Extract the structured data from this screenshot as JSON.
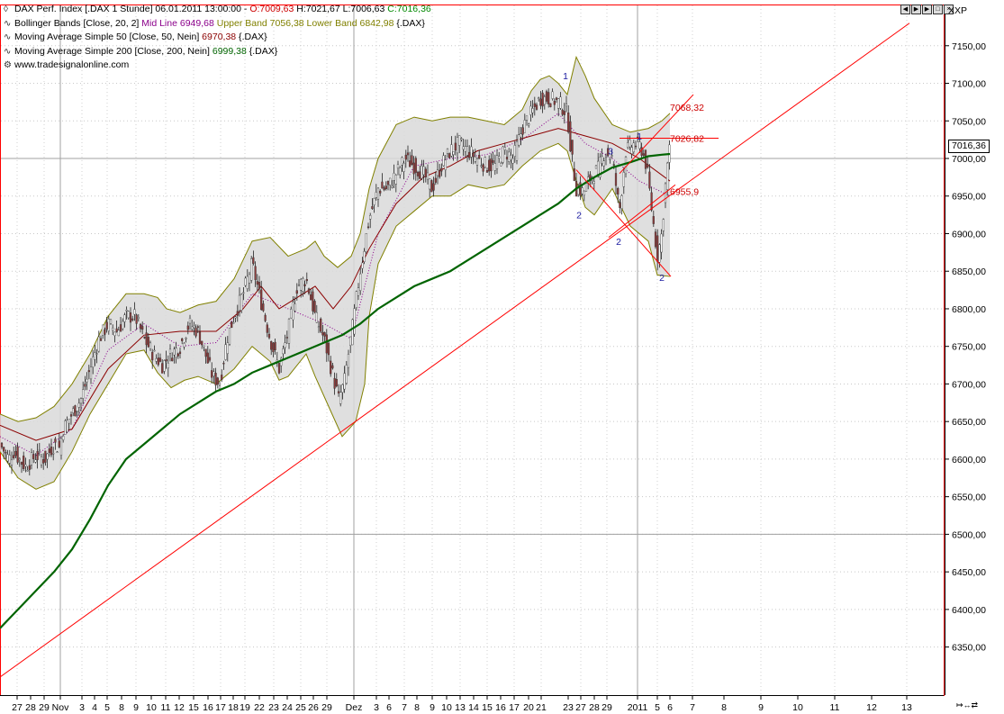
{
  "legend": {
    "line1": {
      "name": "DAX Perf. Index [.DAX  1 Stunde] 06.01.2011 13:00:00 - ",
      "o": "O:7009,63",
      "h": " H:7021,67",
      "l": " L:7006,63",
      "c": " C:7016,36"
    },
    "line2": {
      "name": "Bollinger Bands [Close, 20, 2] ",
      "mid": "Mid Line 6949,68",
      "upper": " Upper Band 7056,38",
      "lower": " Lower Band 6842,98",
      "suffix": " {.DAX}"
    },
    "line3": {
      "name": "Moving Average Simple 50 [Close, 50, Nein] ",
      "val": "6970,38",
      "suffix": " {.DAX}"
    },
    "line4": {
      "name": "Moving Average Simple 200 [Close, 200, Nein] ",
      "val": "6999,38",
      "suffix": " {.DAX}"
    },
    "line5": {
      "name": "www.tradesignalonline.com"
    }
  },
  "symbol": "XXP",
  "last_price": "7016,36",
  "colors": {
    "open": "#cc0000",
    "close": "#008800",
    "mid": "#8b008b",
    "bands": "#808000",
    "ma50": "#8b0000",
    "ma200": "#006400",
    "trend": "#ff0000",
    "waves": "#000080"
  },
  "chart_data": {
    "type": "candlestick",
    "title": "DAX Perf. Index [.DAX 1 Stunde]",
    "ylim": [
      6300,
      7200
    ],
    "y_ticks": [
      "7150,00",
      "7100,00",
      "7050,00",
      "7000,00",
      "6950,00",
      "6900,00",
      "6850,00",
      "6800,00",
      "6750,00",
      "6700,00",
      "6650,00",
      "6600,00",
      "6550,00",
      "6500,00",
      "6450,00",
      "6400,00",
      "6350,00"
    ],
    "x_ticks": [
      "27",
      "28",
      "29",
      "Nov",
      "3",
      "4",
      "5",
      "8",
      "9",
      "10",
      "11",
      "12",
      "15",
      "16",
      "17",
      "18",
      "19",
      "22",
      "23",
      "24",
      "25",
      "26",
      "29",
      "Dez",
      "3",
      "6",
      "7",
      "8",
      "9",
      "10",
      "13",
      "14",
      "15",
      "16",
      "17",
      "20",
      "21",
      "23",
      "27",
      "28",
      "29",
      "2011",
      "5",
      "6",
      "7",
      "8",
      "9",
      "10",
      "11",
      "12",
      "13"
    ],
    "close_path": [
      [
        0,
        6620
      ],
      [
        10,
        6600
      ],
      [
        15,
        6610
      ],
      [
        28,
        6590
      ],
      [
        40,
        6605
      ],
      [
        50,
        6600
      ],
      [
        60,
        6620
      ],
      [
        66,
        6615
      ],
      [
        70,
        6640
      ],
      [
        80,
        6660
      ],
      [
        90,
        6680
      ],
      [
        100,
        6720
      ],
      [
        110,
        6760
      ],
      [
        120,
        6780
      ],
      [
        130,
        6770
      ],
      [
        140,
        6790
      ],
      [
        150,
        6790
      ],
      [
        160,
        6760
      ],
      [
        170,
        6740
      ],
      [
        180,
        6725
      ],
      [
        190,
        6740
      ],
      [
        200,
        6750
      ],
      [
        210,
        6780
      ],
      [
        220,
        6770
      ],
      [
        228,
        6740
      ],
      [
        236,
        6710
      ],
      [
        244,
        6700
      ],
      [
        252,
        6760
      ],
      [
        260,
        6790
      ],
      [
        270,
        6820
      ],
      [
        280,
        6860
      ],
      [
        290,
        6810
      ],
      [
        300,
        6760
      ],
      [
        310,
        6720
      ],
      [
        320,
        6770
      ],
      [
        330,
        6830
      ],
      [
        340,
        6840
      ],
      [
        350,
        6790
      ],
      [
        360,
        6760
      ],
      [
        368,
        6720
      ],
      [
        376,
        6680
      ],
      [
        382,
        6700
      ],
      [
        392,
        6780
      ],
      [
        400,
        6850
      ],
      [
        410,
        6920
      ],
      [
        420,
        6960
      ],
      [
        430,
        6960
      ],
      [
        440,
        6980
      ],
      [
        450,
        7000
      ],
      [
        460,
        6990
      ],
      [
        470,
        6980
      ],
      [
        480,
        6960
      ],
      [
        490,
        6990
      ],
      [
        500,
        7010
      ],
      [
        510,
        7020
      ],
      [
        520,
        7010
      ],
      [
        530,
        7000
      ],
      [
        540,
        6990
      ],
      [
        550,
        6990
      ],
      [
        560,
        7010
      ],
      [
        570,
        7000
      ],
      [
        580,
        7040
      ],
      [
        590,
        7060
      ],
      [
        600,
        7080
      ],
      [
        610,
        7080
      ],
      [
        620,
        7075
      ],
      [
        630,
        7060
      ],
      [
        635,
        7000
      ],
      [
        640,
        6960
      ],
      [
        648,
        6955
      ],
      [
        656,
        6975
      ],
      [
        664,
        6985
      ],
      [
        672,
        7010
      ],
      [
        680,
        7000
      ],
      [
        688,
        6930
      ],
      [
        695,
        7010
      ],
      [
        705,
        7020
      ],
      [
        712,
        7015
      ],
      [
        718,
        6990
      ],
      [
        724,
        6930
      ],
      [
        730,
        6870
      ],
      [
        735,
        6900
      ],
      [
        740,
        6980
      ],
      [
        744,
        7016
      ]
    ],
    "ma200_path": [
      [
        0,
        6375
      ],
      [
        20,
        6400
      ],
      [
        40,
        6425
      ],
      [
        60,
        6450
      ],
      [
        80,
        6480
      ],
      [
        100,
        6520
      ],
      [
        120,
        6565
      ],
      [
        140,
        6600
      ],
      [
        160,
        6620
      ],
      [
        180,
        6640
      ],
      [
        200,
        6660
      ],
      [
        220,
        6675
      ],
      [
        240,
        6690
      ],
      [
        260,
        6700
      ],
      [
        280,
        6715
      ],
      [
        300,
        6725
      ],
      [
        320,
        6735
      ],
      [
        340,
        6745
      ],
      [
        360,
        6755
      ],
      [
        380,
        6765
      ],
      [
        400,
        6780
      ],
      [
        420,
        6800
      ],
      [
        440,
        6815
      ],
      [
        460,
        6830
      ],
      [
        480,
        6840
      ],
      [
        500,
        6850
      ],
      [
        520,
        6865
      ],
      [
        540,
        6880
      ],
      [
        560,
        6895
      ],
      [
        580,
        6910
      ],
      [
        600,
        6925
      ],
      [
        620,
        6940
      ],
      [
        640,
        6960
      ],
      [
        660,
        6975
      ],
      [
        680,
        6988
      ],
      [
        700,
        6995
      ],
      [
        720,
        7003
      ],
      [
        735,
        7005
      ],
      [
        744,
        7006
      ]
    ],
    "upper_band_path": [
      [
        0,
        6660
      ],
      [
        20,
        6650
      ],
      [
        40,
        6655
      ],
      [
        60,
        6670
      ],
      [
        80,
        6700
      ],
      [
        100,
        6740
      ],
      [
        120,
        6790
      ],
      [
        140,
        6820
      ],
      [
        160,
        6820
      ],
      [
        175,
        6815
      ],
      [
        185,
        6800
      ],
      [
        200,
        6795
      ],
      [
        220,
        6805
      ],
      [
        240,
        6810
      ],
      [
        260,
        6840
      ],
      [
        280,
        6890
      ],
      [
        300,
        6895
      ],
      [
        320,
        6870
      ],
      [
        340,
        6880
      ],
      [
        350,
        6890
      ],
      [
        360,
        6870
      ],
      [
        375,
        6855
      ],
      [
        390,
        6870
      ],
      [
        400,
        6900
      ],
      [
        410,
        6960
      ],
      [
        420,
        7000
      ],
      [
        440,
        7045
      ],
      [
        460,
        7055
      ],
      [
        480,
        7050
      ],
      [
        500,
        7055
      ],
      [
        520,
        7055
      ],
      [
        540,
        7050
      ],
      [
        560,
        7045
      ],
      [
        580,
        7065
      ],
      [
        590,
        7090
      ],
      [
        600,
        7105
      ],
      [
        610,
        7110
      ],
      [
        620,
        7100
      ],
      [
        630,
        7085
      ],
      [
        640,
        7135
      ],
      [
        650,
        7110
      ],
      [
        660,
        7080
      ],
      [
        680,
        7045
      ],
      [
        700,
        7035
      ],
      [
        720,
        7040
      ],
      [
        735,
        7050
      ],
      [
        744,
        7060
      ]
    ],
    "lower_band_path": [
      [
        0,
        6610
      ],
      [
        20,
        6575
      ],
      [
        40,
        6560
      ],
      [
        60,
        6570
      ],
      [
        80,
        6610
      ],
      [
        100,
        6660
      ],
      [
        120,
        6700
      ],
      [
        140,
        6740
      ],
      [
        160,
        6745
      ],
      [
        175,
        6715
      ],
      [
        190,
        6695
      ],
      [
        205,
        6705
      ],
      [
        220,
        6710
      ],
      [
        240,
        6700
      ],
      [
        260,
        6720
      ],
      [
        280,
        6750
      ],
      [
        300,
        6730
      ],
      [
        310,
        6705
      ],
      [
        320,
        6710
      ],
      [
        340,
        6740
      ],
      [
        350,
        6710
      ],
      [
        365,
        6670
      ],
      [
        380,
        6630
      ],
      [
        395,
        6650
      ],
      [
        405,
        6700
      ],
      [
        410,
        6790
      ],
      [
        420,
        6860
      ],
      [
        440,
        6910
      ],
      [
        460,
        6930
      ],
      [
        480,
        6950
      ],
      [
        500,
        6950
      ],
      [
        520,
        6965
      ],
      [
        540,
        6960
      ],
      [
        560,
        6965
      ],
      [
        580,
        6990
      ],
      [
        600,
        7010
      ],
      [
        620,
        7020
      ],
      [
        630,
        7010
      ],
      [
        640,
        6970
      ],
      [
        650,
        6935
      ],
      [
        660,
        6925
      ],
      [
        680,
        6960
      ],
      [
        700,
        6910
      ],
      [
        720,
        6890
      ],
      [
        730,
        6845
      ],
      [
        744,
        6843
      ]
    ],
    "ma50_path": [
      [
        0,
        6645
      ],
      [
        40,
        6625
      ],
      [
        80,
        6640
      ],
      [
        120,
        6720
      ],
      [
        160,
        6765
      ],
      [
        200,
        6770
      ],
      [
        240,
        6770
      ],
      [
        270,
        6800
      ],
      [
        290,
        6830
      ],
      [
        310,
        6800
      ],
      [
        330,
        6815
      ],
      [
        350,
        6830
      ],
      [
        370,
        6800
      ],
      [
        390,
        6830
      ],
      [
        410,
        6880
      ],
      [
        440,
        6940
      ],
      [
        470,
        6975
      ],
      [
        500,
        6990
      ],
      [
        530,
        7010
      ],
      [
        560,
        7020
      ],
      [
        590,
        7030
      ],
      [
        620,
        7040
      ],
      [
        650,
        7030
      ],
      [
        680,
        7020
      ],
      [
        710,
        7000
      ],
      [
        744,
        6970
      ]
    ],
    "mid_line_path": [
      [
        0,
        6630
      ],
      [
        40,
        6605
      ],
      [
        80,
        6640
      ],
      [
        120,
        6745
      ],
      [
        160,
        6780
      ],
      [
        200,
        6750
      ],
      [
        240,
        6755
      ],
      [
        280,
        6820
      ],
      [
        320,
        6800
      ],
      [
        360,
        6780
      ],
      [
        390,
        6760
      ],
      [
        420,
        6900
      ],
      [
        460,
        6990
      ],
      [
        500,
        7000
      ],
      [
        540,
        7005
      ],
      [
        580,
        7025
      ],
      [
        620,
        7060
      ],
      [
        650,
        7020
      ],
      [
        680,
        7000
      ],
      [
        710,
        6970
      ],
      [
        744,
        6950
      ]
    ],
    "trendline": [
      [
        0,
        6310
      ],
      [
        1010,
        7180
      ]
    ],
    "annotations": [
      {
        "label": "7068,32",
        "x": 744,
        "y": 7068
      },
      {
        "label": "7026,82",
        "x": 744,
        "y": 7027
      },
      {
        "label": "6955,9",
        "x": 744,
        "y": 6956
      }
    ],
    "wave_labels": [
      {
        "label": "1",
        "x": 628,
        "y": 7110
      },
      {
        "label": "2",
        "x": 643,
        "y": 6925
      },
      {
        "label": "3",
        "x": 678,
        "y": 7010
      },
      {
        "label": "1",
        "x": 710,
        "y": 7030
      },
      {
        "label": "2",
        "x": 687,
        "y": 6890
      },
      {
        "label": "2",
        "x": 735,
        "y": 6842
      }
    ]
  }
}
